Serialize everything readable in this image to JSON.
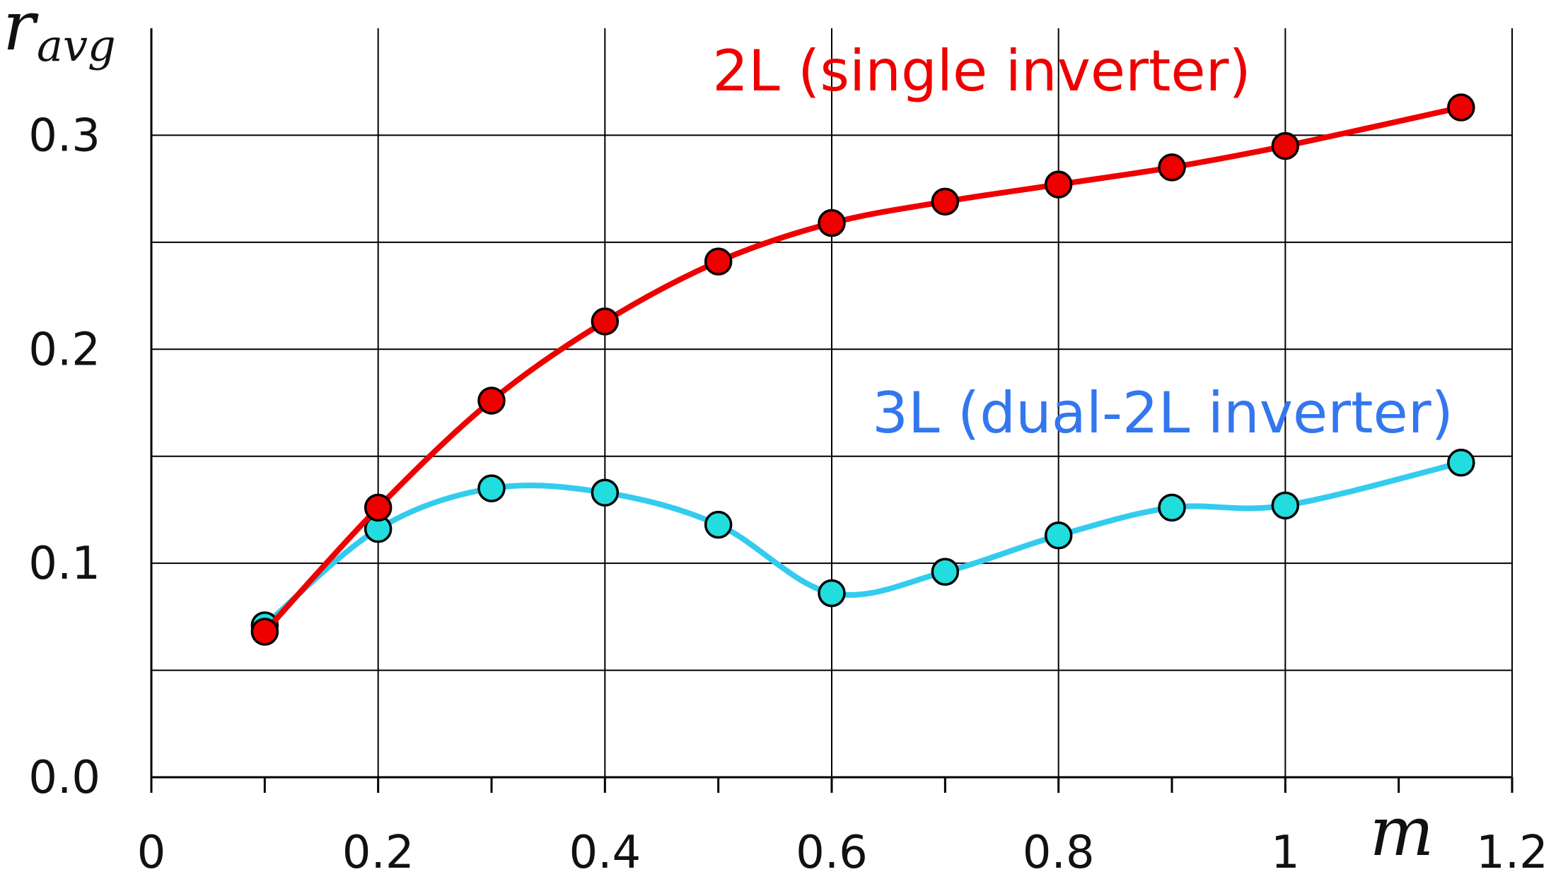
{
  "chart_data": {
    "type": "line",
    "title": "",
    "xlabel": "m",
    "ylabel": "r",
    "ylabel_subscript": "avg",
    "xlim": [
      0,
      1.2
    ],
    "ylim": [
      0,
      0.35
    ],
    "grid": true,
    "x_ticks": [
      {
        "value": 0,
        "label": "0"
      },
      {
        "value": 0.2,
        "label": "0.2"
      },
      {
        "value": 0.4,
        "label": "0.4"
      },
      {
        "value": 0.6,
        "label": "0.6"
      },
      {
        "value": 0.8,
        "label": "0.8"
      },
      {
        "value": 1.0,
        "label": "1"
      },
      {
        "value": 1.2,
        "label": "1.2"
      }
    ],
    "x_minor_ticks": [
      0.1,
      0.3,
      0.5,
      0.7,
      0.9,
      1.1
    ],
    "y_ticks": [
      {
        "value": 0.0,
        "label": "0.0"
      },
      {
        "value": 0.1,
        "label": "0.1"
      },
      {
        "value": 0.2,
        "label": "0.2"
      },
      {
        "value": 0.3,
        "label": "0.3"
      }
    ],
    "y_gridlines": [
      0.05,
      0.1,
      0.15,
      0.2,
      0.25,
      0.3
    ],
    "series": [
      {
        "name": "2L (single inverter)",
        "line_color": "#ee0000",
        "marker_color": "#ee0000",
        "label_color": "#ee0000",
        "x": [
          0.1,
          0.2,
          0.3,
          0.4,
          0.5,
          0.6,
          0.7,
          0.8,
          0.9,
          1.0,
          1.155
        ],
        "y": [
          0.068,
          0.126,
          0.176,
          0.213,
          0.241,
          0.259,
          0.269,
          0.277,
          0.285,
          0.295,
          0.313
        ]
      },
      {
        "name": "3L (dual-2L inverter)",
        "line_color": "#33ccee",
        "marker_color": "#22dddd",
        "label_color": "#3377ee",
        "x": [
          0.1,
          0.2,
          0.3,
          0.4,
          0.5,
          0.6,
          0.7,
          0.8,
          0.9,
          1.0,
          1.155
        ],
        "y": [
          0.071,
          0.116,
          0.135,
          0.133,
          0.118,
          0.086,
          0.096,
          0.113,
          0.126,
          0.127,
          0.147
        ]
      }
    ]
  }
}
